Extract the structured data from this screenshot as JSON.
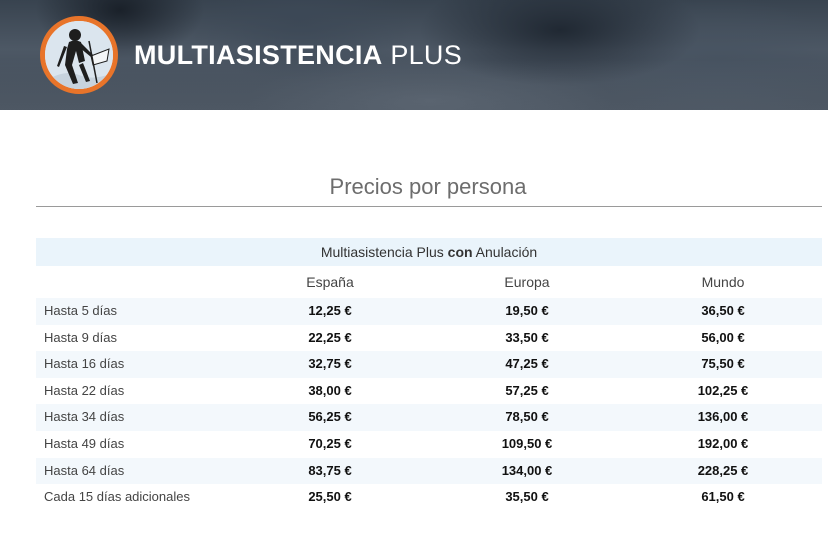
{
  "header": {
    "brand_bold": "MULTIASISTENCIA",
    "brand_light": "PLUS",
    "logo_icon": "hiker-logo-icon",
    "accent_color": "#e8742a"
  },
  "section": {
    "title": "Precios por persona"
  },
  "table": {
    "caption_pre": "Multiasistencia Plus ",
    "caption_bold": "con",
    "caption_post": " Anulación",
    "columns": [
      "España",
      "Europa",
      "Mundo"
    ],
    "rows": [
      {
        "label": "Hasta 5 días",
        "espana": "12,25 €",
        "europa": "19,50 €",
        "mundo": "36,50 €"
      },
      {
        "label": "Hasta 9 días",
        "espana": "22,25 €",
        "europa": "33,50 €",
        "mundo": "56,00 €"
      },
      {
        "label": "Hasta 16 días",
        "espana": "32,75 €",
        "europa": "47,25 €",
        "mundo": "75,50 €"
      },
      {
        "label": "Hasta 22 días",
        "espana": "38,00 €",
        "europa": "57,25 €",
        "mundo": "102,25 €"
      },
      {
        "label": "Hasta 34 días",
        "espana": "56,25 €",
        "europa": "78,50 €",
        "mundo": "136,00 €"
      },
      {
        "label": "Hasta 49 días",
        "espana": "70,25 €",
        "europa": "109,50 €",
        "mundo": "192,00 €"
      },
      {
        "label": "Hasta 64 días",
        "espana": "83,75 €",
        "europa": "134,00 €",
        "mundo": "228,25 €"
      },
      {
        "label": "Cada 15 días adicionales",
        "espana": "25,50 €",
        "europa": "35,50 €",
        "mundo": "61,50 €"
      }
    ]
  }
}
